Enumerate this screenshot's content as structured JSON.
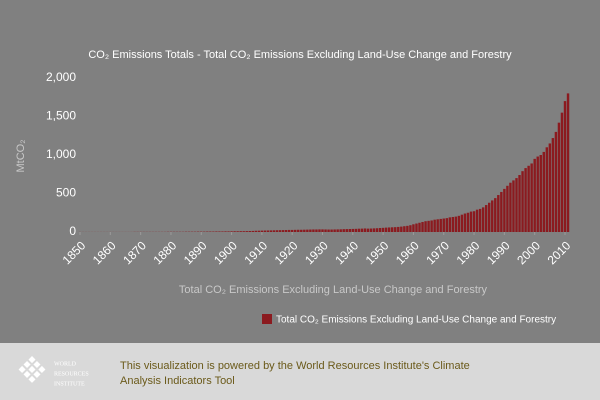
{
  "chart_data": {
    "type": "bar",
    "title": "CO₂ Emissions Totals - Total CO₂ Emissions Excluding Land-Use Change and Forestry",
    "xlabel": "Total CO₂ Emissions Excluding Land-Use Change and Forestry",
    "ylabel": "MtCO₂",
    "x": [
      1850,
      1851,
      1852,
      1853,
      1854,
      1855,
      1856,
      1857,
      1858,
      1859,
      1860,
      1861,
      1862,
      1863,
      1864,
      1865,
      1866,
      1867,
      1868,
      1869,
      1870,
      1871,
      1872,
      1873,
      1874,
      1875,
      1876,
      1877,
      1878,
      1879,
      1880,
      1881,
      1882,
      1883,
      1884,
      1885,
      1886,
      1887,
      1888,
      1889,
      1890,
      1891,
      1892,
      1893,
      1894,
      1895,
      1896,
      1897,
      1898,
      1899,
      1900,
      1901,
      1902,
      1903,
      1904,
      1905,
      1906,
      1907,
      1908,
      1909,
      1910,
      1911,
      1912,
      1913,
      1914,
      1915,
      1916,
      1917,
      1918,
      1919,
      1920,
      1921,
      1922,
      1923,
      1924,
      1925,
      1926,
      1927,
      1928,
      1929,
      1930,
      1931,
      1932,
      1933,
      1934,
      1935,
      1936,
      1937,
      1938,
      1939,
      1940,
      1941,
      1942,
      1943,
      1944,
      1945,
      1946,
      1947,
      1948,
      1949,
      1950,
      1951,
      1952,
      1953,
      1954,
      1955,
      1956,
      1957,
      1958,
      1959,
      1960,
      1961,
      1962,
      1963,
      1964,
      1965,
      1966,
      1967,
      1968,
      1969,
      1970,
      1971,
      1972,
      1973,
      1974,
      1975,
      1976,
      1977,
      1978,
      1979,
      1980,
      1981,
      1982,
      1983,
      1984,
      1985,
      1986,
      1987,
      1988,
      1989,
      1990,
      1991,
      1992,
      1993,
      1994,
      1995,
      1996,
      1997,
      1998,
      1999,
      2000,
      2001,
      2002,
      2003,
      2004,
      2005,
      2006,
      2007,
      2008,
      2009,
      2010,
      2011
    ],
    "series": [
      {
        "name": "Total CO₂ Emissions Excluding Land-Use Change and Forestry",
        "color": "#8b1a1f",
        "values": [
          1,
          1,
          1,
          1,
          1,
          1,
          1,
          1,
          1,
          1,
          1,
          1,
          1,
          1,
          1,
          1,
          1,
          1,
          2,
          2,
          2,
          2,
          2,
          2,
          2,
          2,
          2,
          2,
          2,
          3,
          3,
          3,
          3,
          3,
          3,
          4,
          4,
          4,
          4,
          5,
          5,
          5,
          6,
          6,
          6,
          7,
          7,
          7,
          8,
          8,
          9,
          10,
          10,
          11,
          11,
          12,
          13,
          14,
          16,
          17,
          18,
          19,
          20,
          21,
          22,
          23,
          24,
          25,
          26,
          27,
          27,
          28,
          29,
          29,
          30,
          31,
          32,
          33,
          33,
          34,
          34,
          33,
          32,
          32,
          33,
          34,
          35,
          37,
          38,
          39,
          40,
          41,
          43,
          44,
          46,
          44,
          45,
          47,
          49,
          52,
          54,
          57,
          59,
          61,
          63,
          66,
          70,
          75,
          80,
          88,
          100,
          110,
          120,
          130,
          140,
          145,
          150,
          160,
          165,
          170,
          175,
          180,
          190,
          195,
          200,
          210,
          225,
          240,
          250,
          265,
          270,
          290,
          300,
          320,
          350,
          380,
          410,
          440,
          480,
          520,
          560,
          600,
          640,
          670,
          700,
          740,
          790,
          830,
          860,
          890,
          950,
          980,
          1000,
          1040,
          1100,
          1150,
          1220,
          1300,
          1420,
          1550,
          1700,
          1800
        ]
      }
    ],
    "xlim": [
      1846.7,
      2013.3
    ],
    "xticks": [
      1850,
      1860,
      1870,
      1880,
      1890,
      1900,
      1910,
      1920,
      1930,
      1940,
      1950,
      1960,
      1970,
      1980,
      1990,
      2000,
      2010
    ],
    "ylim": [
      0,
      2000
    ],
    "yticks": [
      0,
      500,
      {
        "value": 1000,
        "label": "1,000"
      },
      {
        "value": 1500,
        "label": "1,500"
      },
      {
        "value": 2000,
        "label": "2,000"
      }
    ],
    "grid": false,
    "legend": "bottom-right"
  },
  "footer": {
    "logo": [
      "WORLD",
      "RESOURCES",
      "INSTITUTE"
    ],
    "text": [
      "This visualization is powered by the World Resources Institute's Climate",
      "Analysis Indicators Tool"
    ]
  }
}
